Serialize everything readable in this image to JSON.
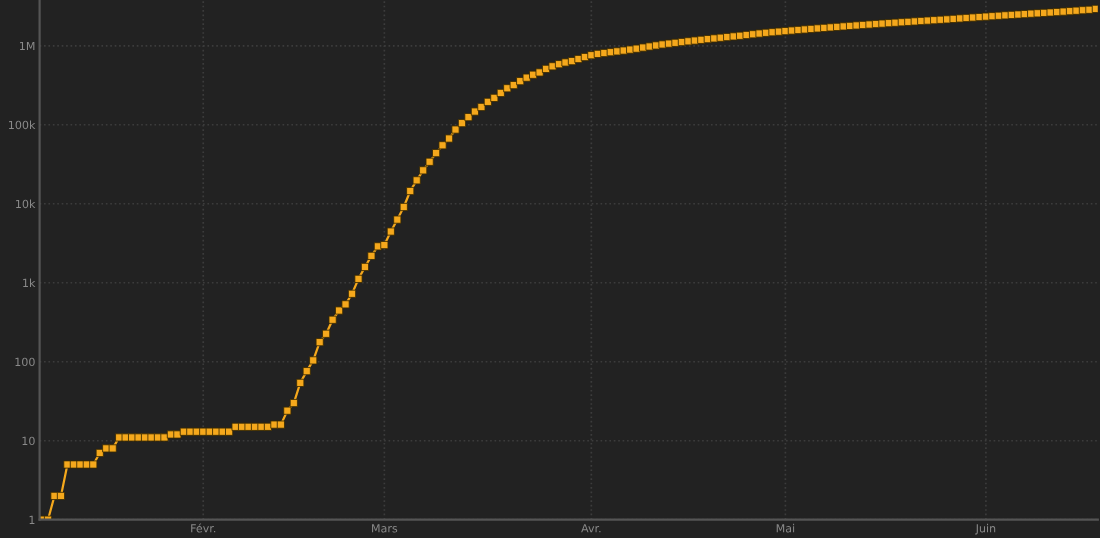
{
  "chart_data": {
    "type": "line",
    "categories": [
      null,
      null,
      null,
      null,
      null,
      null,
      null,
      null,
      null,
      null,
      null,
      null,
      null,
      null,
      null,
      null,
      null,
      null,
      null,
      null,
      null,
      null,
      null,
      null,
      null,
      "Févr.",
      null,
      null,
      null,
      null,
      null,
      null,
      null,
      null,
      null,
      null,
      null,
      null,
      null,
      null,
      null,
      null,
      null,
      null,
      null,
      null,
      null,
      null,
      null,
      null,
      null,
      null,
      null,
      "Mars",
      null,
      null,
      null,
      null,
      null,
      null,
      null,
      null,
      null,
      null,
      null,
      null,
      null,
      null,
      null,
      null,
      null,
      null,
      null,
      null,
      null,
      null,
      null,
      null,
      null,
      null,
      null,
      null,
      null,
      null,
      null,
      "Avr.",
      null,
      null,
      null,
      null,
      null,
      null,
      null,
      null,
      null,
      null,
      null,
      null,
      null,
      null,
      null,
      null,
      null,
      null,
      null,
      null,
      null,
      null,
      null,
      null,
      null,
      null,
      null,
      null,
      null,
      "Mai",
      null,
      null,
      null,
      null,
      null,
      null,
      null,
      null,
      null,
      null,
      null,
      null,
      null,
      null,
      null,
      null,
      null,
      null,
      null,
      null,
      null,
      null,
      null,
      null,
      null,
      null,
      null,
      null,
      null,
      null,
      "Juin",
      null,
      null,
      null,
      null,
      null,
      null,
      null,
      null,
      null,
      null,
      null,
      null,
      null,
      null,
      null,
      null,
      null
    ],
    "series": [
      {
        "color": "#f5a81c",
        "values": [
          1,
          1,
          2,
          2,
          5,
          5,
          5,
          5,
          5,
          7,
          8,
          8,
          11,
          11,
          11,
          11,
          11,
          11,
          11,
          11,
          12,
          12,
          13,
          13,
          13,
          13,
          13,
          13,
          13,
          13,
          15,
          15,
          15,
          15,
          15,
          15,
          16,
          16,
          24,
          30,
          54,
          76,
          104,
          177,
          226,
          340,
          445,
          533,
          725,
          1120,
          1585,
          2190,
          2890,
          3000,
          4450,
          6300,
          9100,
          14500,
          19800,
          26500,
          34000,
          43800,
          55000,
          67000,
          87000,
          105000,
          125000,
          147000,
          168000,
          195000,
          219000,
          253000,
          290000,
          318000,
          357000,
          395000,
          430000,
          460000,
          510000,
          550000,
          585000,
          615000,
          640000,
          680000,
          720000,
          760000,
          790000,
          810000,
          830000,
          850000,
          870000,
          895000,
          920000,
          950000,
          980000,
          1010000,
          1040000,
          1065000,
          1090000,
          1115000,
          1140000,
          1165000,
          1190000,
          1215000,
          1240000,
          1265000,
          1290000,
          1315000,
          1340000,
          1370000,
          1400000,
          1430000,
          1460000,
          1485000,
          1510000,
          1535000,
          1560000,
          1585000,
          1610000,
          1635000,
          1660000,
          1685000,
          1710000,
          1735000,
          1760000,
          1785000,
          1810000,
          1835000,
          1860000,
          1885000,
          1910000,
          1935000,
          1960000,
          1985000,
          2010000,
          2035000,
          2060000,
          2085000,
          2110000,
          2135000,
          2160000,
          2190000,
          2220000,
          2250000,
          2280000,
          2310000,
          2340000,
          2370000,
          2400000,
          2430000,
          2460000,
          2490000,
          2520000,
          2550000,
          2580000,
          2610000,
          2640000,
          2675000,
          2710000,
          2745000,
          2780000,
          2820000,
          2860000,
          2930000
        ]
      }
    ],
    "log": "y",
    "ylim": [
      1,
      3800000
    ],
    "yticks": [
      1,
      10,
      100,
      {
        "value": 1000,
        "label": "1k"
      },
      {
        "value": 10000,
        "label": "10k"
      },
      {
        "value": 100000,
        "label": "100k"
      },
      {
        "value": 1000000,
        "label": "1M"
      }
    ],
    "grid": "y",
    "marker": "square",
    "line_style": "solid",
    "legend": false
  }
}
